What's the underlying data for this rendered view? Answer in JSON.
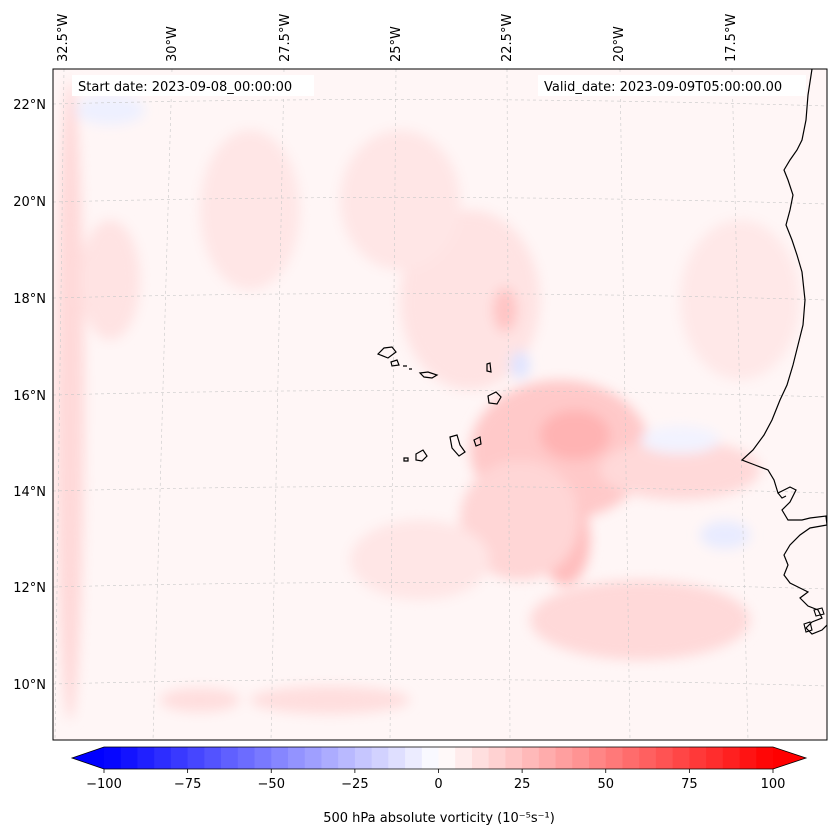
{
  "map": {
    "start_date_label": "Start date: 2023-09-08_00:00:00",
    "valid_date_label": "Valid_date: 2023-09-09T05:00:00.00",
    "longitude_labels": [
      "32.5°W",
      "30°W",
      "27.5°W",
      "25°W",
      "22.5°W",
      "20°W",
      "17.5°W"
    ],
    "latitude_labels": [
      "22°N",
      "20°N",
      "18°N",
      "16°N",
      "14°N",
      "12°N",
      "10°N"
    ],
    "field_background_color": "#fff6f6",
    "coastline_color": "#000000"
  },
  "colorbar": {
    "min": -100,
    "max": 100,
    "step": 5,
    "tick_values": [
      -100,
      -75,
      -50,
      -25,
      0,
      25,
      50,
      75,
      100
    ],
    "tick_labels": [
      "−100",
      "−75",
      "−50",
      "−25",
      "0",
      "25",
      "50",
      "75",
      "100"
    ],
    "label": "500 hPa absolute vorticity (10⁻⁵s⁻¹)",
    "low_color": "#0000ff",
    "mid_color": "#ffffff",
    "high_color": "#ff0000"
  }
}
